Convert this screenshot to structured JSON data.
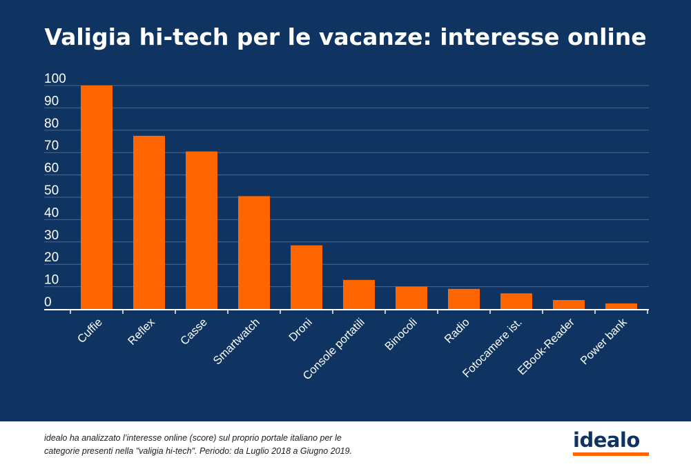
{
  "chart_data": {
    "type": "bar",
    "title": "Valigia hi-tech per le vacanze: interesse online",
    "xlabel": "",
    "ylabel": "",
    "categories": [
      "Cuffie",
      "Reflex",
      "Casse",
      "Smartwatch",
      "Droni",
      "Console portatili",
      "Binocoli",
      "Radio",
      "Fotocamere ist.",
      "EBook-Reader",
      "Power bank"
    ],
    "values": [
      100,
      77.5,
      70.5,
      50.5,
      28.5,
      13,
      10,
      9,
      7,
      4,
      2.5
    ],
    "ylim": [
      0,
      100
    ],
    "yticks": [
      0,
      10,
      20,
      30,
      40,
      50,
      60,
      70,
      80,
      90,
      100
    ],
    "grid": true,
    "bar_color": "#ff6600",
    "background_color": "#0f3461"
  },
  "footer": {
    "note_line1": "idealo ha analizzato l’interesse online (score) sul proprio portale italiano per le",
    "note_line2": "categorie presenti nella \"valigia hi-tech\". Periodo: da Luglio 2018 a Giugno 2019."
  },
  "brand": {
    "logo_text": "idealo",
    "accent": "#ff6600",
    "primary": "#0f3461"
  }
}
